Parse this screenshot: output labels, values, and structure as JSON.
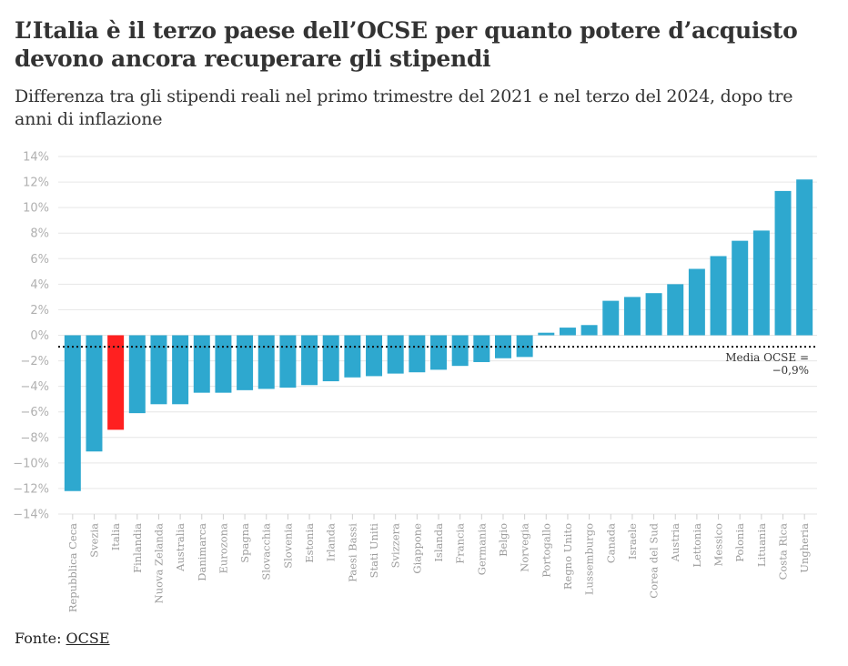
{
  "header": {
    "title": "L’Italia è il terzo paese dell’OCSE per quanto potere d’acquisto devono ancora recuperare gli stipendi",
    "subtitle": "Differenza tra gli stipendi reali nel primo trimestre del 2021 e nel terzo del 2024, dopo tre anni di inflazione"
  },
  "footer": {
    "source_label": "Fonte:",
    "source_link": "OCSE"
  },
  "chart_data": {
    "type": "bar",
    "title": "L’Italia è il terzo paese dell’OCSE per quanto potere d’acquisto devono ancora recuperare gli stipendi",
    "subtitle": "Differenza tra gli stipendi reali nel primo trimestre del 2021 e nel terzo del 2024, dopo tre anni di inflazione",
    "xlabel": "",
    "ylabel": "",
    "ylim": [
      -14,
      14
    ],
    "yticks": [
      14,
      12,
      10,
      8,
      6,
      4,
      2,
      0,
      -2,
      -4,
      -6,
      -8,
      -10,
      -12,
      -14
    ],
    "ytick_labels": [
      "14%",
      "12%",
      "10%",
      "8%",
      "6%",
      "4%",
      "2%",
      "0%",
      "−2%",
      "−4%",
      "−6%",
      "−8%",
      "−10%",
      "−12%",
      "−14%"
    ],
    "grid": true,
    "colors": {
      "default": "#2ea8cf",
      "highlight": "#ff2020"
    },
    "highlight": "Italia",
    "categories": [
      "Repubblica Ceca",
      "Svezia",
      "Italia",
      "Finlandia",
      "Nuova Zelanda",
      "Australia",
      "Danimarca",
      "Eurozona",
      "Spagna",
      "Slovacchia",
      "Slovenia",
      "Estonia",
      "Irlanda",
      "Paesi Bassi",
      "Stati Uniti",
      "Svizzera",
      "Giappone",
      "Islanda",
      "Francia",
      "Germania",
      "Belgio",
      "Norvegia",
      "Portogallo",
      "Regno Unito",
      "Lussemburgo",
      "Canada",
      "Israele",
      "Corea del Sud",
      "Austria",
      "Lettonia",
      "Messico",
      "Polonia",
      "Lituania",
      "Costa Rica",
      "Ungheria"
    ],
    "values": [
      -12.2,
      -9.1,
      -7.4,
      -6.1,
      -5.4,
      -5.4,
      -4.5,
      -4.5,
      -4.3,
      -4.2,
      -4.1,
      -3.9,
      -3.6,
      -3.3,
      -3.2,
      -3.0,
      -2.9,
      -2.7,
      -2.4,
      -2.1,
      -1.8,
      -1.7,
      0.2,
      0.6,
      0.8,
      2.7,
      3.0,
      3.3,
      4.0,
      5.2,
      6.2,
      7.4,
      8.2,
      11.3,
      12.2
    ],
    "reference_line": {
      "value": -0.9,
      "label_line1": "Media OCSE =",
      "label_line2": "−0,9%",
      "style": "dotted"
    }
  }
}
